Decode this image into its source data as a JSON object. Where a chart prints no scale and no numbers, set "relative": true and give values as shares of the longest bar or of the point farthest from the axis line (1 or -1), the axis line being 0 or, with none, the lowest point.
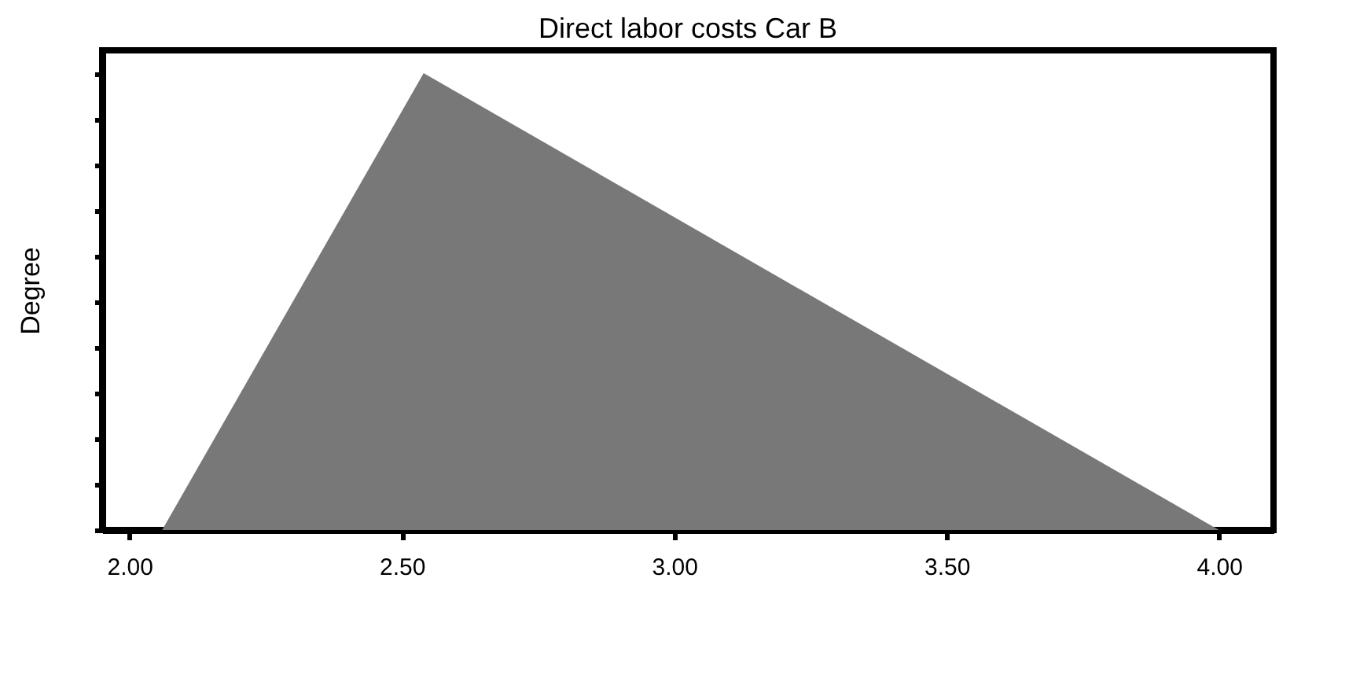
{
  "chart_data": {
    "type": "area",
    "title": "Direct  labor  costs Car B",
    "ylabel": "Degree",
    "relative": true,
    "x": [
      2.06,
      2.54,
      4.0
    ],
    "series": [
      {
        "color": "#787878",
        "values": [
          0,
          1,
          0
        ]
      }
    ],
    "xlim": [
      1.95,
      4.1
    ],
    "xticks": [
      {
        "value": 2.0,
        "label": "2.00"
      },
      {
        "value": 2.5,
        "label": "2.50"
      },
      {
        "value": 3.0,
        "label": "3.00"
      },
      {
        "value": 3.5,
        "label": "3.50"
      },
      {
        "value": 4.0,
        "label": "4.00"
      }
    ],
    "grid": false
  }
}
